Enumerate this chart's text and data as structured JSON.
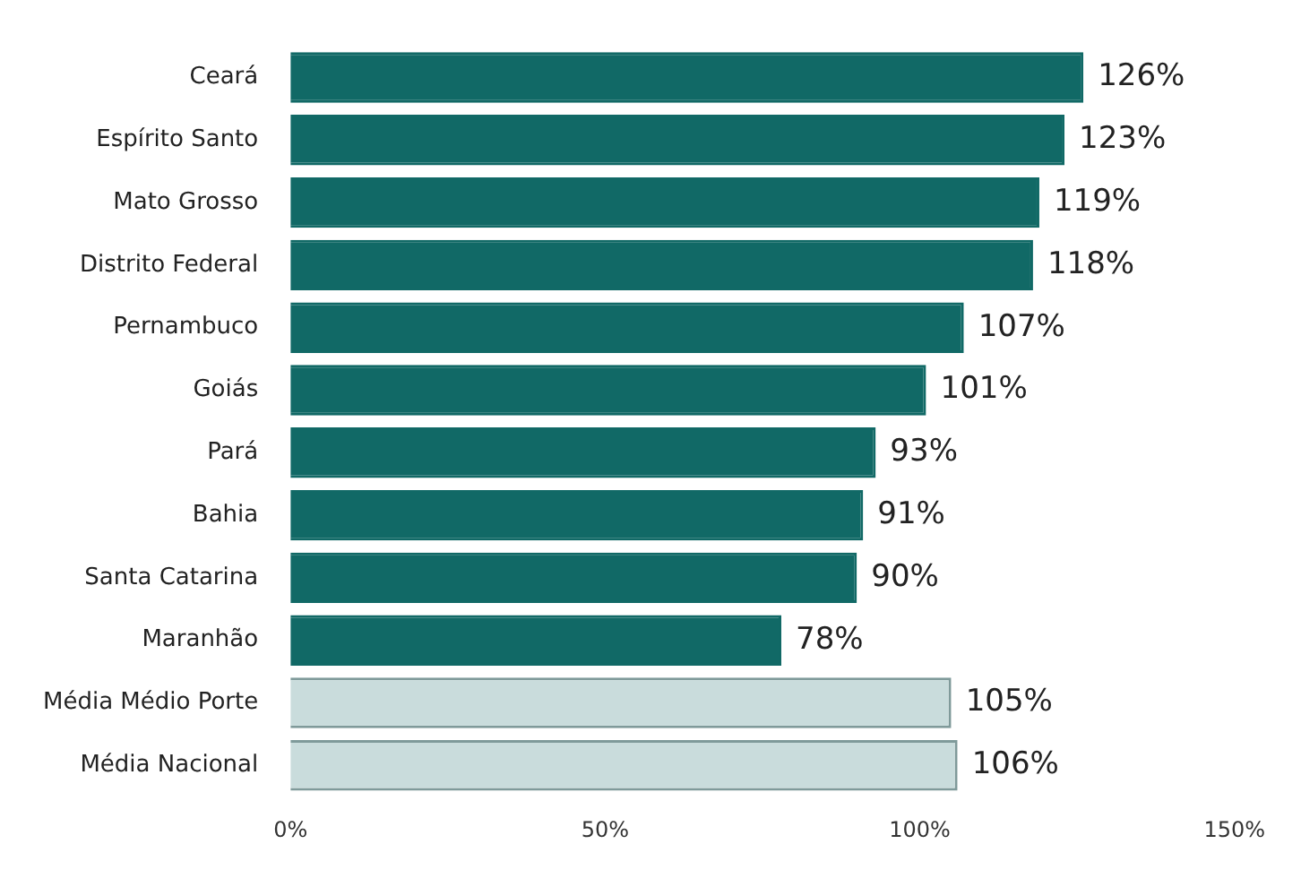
{
  "chart_data": {
    "type": "bar",
    "orientation": "horizontal",
    "categories": [
      "Ceará",
      "Espírito Santo",
      "Mato Grosso",
      "Distrito Federal",
      "Pernambuco",
      "Goiás",
      "Pará",
      "Bahia",
      "Santa Catarina",
      "Maranhão",
      "Média Médio Porte",
      "Média Nacional"
    ],
    "values": [
      126,
      123,
      119,
      118,
      107,
      101,
      93,
      91,
      90,
      78,
      105,
      106
    ],
    "value_labels": [
      "126%",
      "123%",
      "119%",
      "118%",
      "107%",
      "101%",
      "93%",
      "91%",
      "90%",
      "78%",
      "105%",
      "106%"
    ],
    "colors": [
      "#116966",
      "#116966",
      "#116966",
      "#116966",
      "#116966",
      "#116966",
      "#116966",
      "#116966",
      "#116966",
      "#116966",
      "#c9dcdc",
      "#c9dcdc"
    ],
    "xlim": [
      0,
      150
    ],
    "xticks": [
      {
        "value": 0,
        "label": "0%"
      },
      {
        "value": 50,
        "label": "50%"
      },
      {
        "value": 100,
        "label": "100%"
      },
      {
        "value": 150,
        "label": "150%"
      }
    ],
    "grid": false
  }
}
